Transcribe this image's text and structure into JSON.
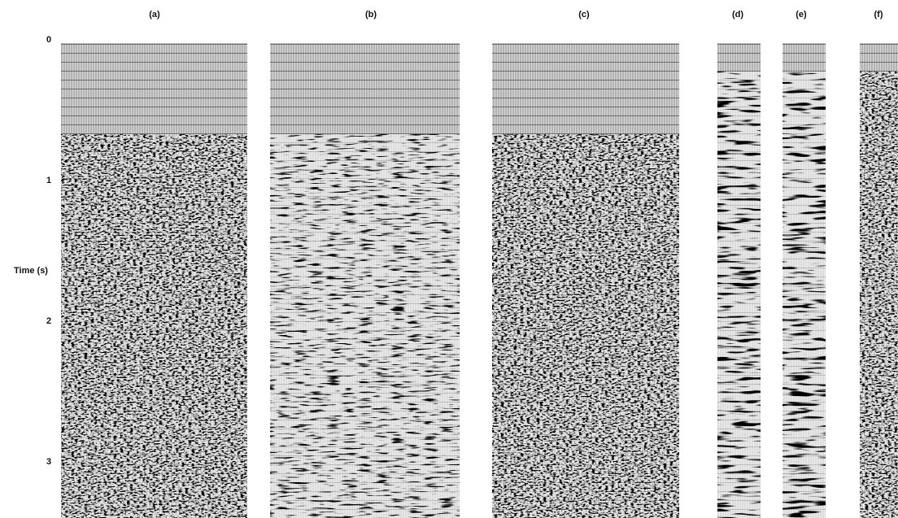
{
  "figure": {
    "panels": [
      {
        "label": "(a)"
      },
      {
        "label": "(b)"
      },
      {
        "label": "(c)"
      },
      {
        "label": "(d)"
      },
      {
        "label": "(e)"
      },
      {
        "label": "(f)"
      }
    ],
    "axis": {
      "label": "Time (s)",
      "ticks": [
        0,
        1,
        2,
        3
      ]
    }
  }
}
